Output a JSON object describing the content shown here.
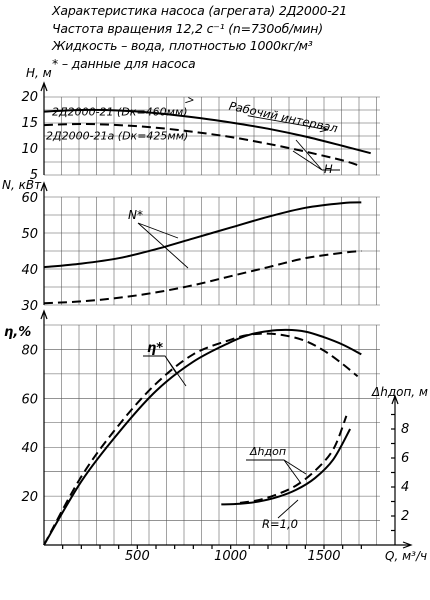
{
  "header": {
    "line1": "Характеристика насоса (агрегата) 2Д2000-21",
    "line2": "Частота вращения 12,2 с⁻¹ (n=730об/мин)",
    "line3": "Жидкость – вода, плотностью 1000кг/м³",
    "line4": "* – данные для насоса"
  },
  "chart_data": [
    {
      "type": "line",
      "panel": "H",
      "ylabel": "H, м",
      "ylim": [
        5,
        20
      ],
      "yticks": [
        "20",
        "15",
        "10",
        "5"
      ],
      "xlim": [
        0,
        1800
      ],
      "series": [
        {
          "name": "2Д2000-21 (Dк=460мм)",
          "style": "solid",
          "x": [
            0,
            200,
            400,
            600,
            800,
            1000,
            1200,
            1400,
            1600,
            1750
          ],
          "y": [
            17.2,
            17.5,
            17.4,
            16.9,
            16.1,
            15.1,
            13.9,
            12.4,
            10.6,
            9.2
          ]
        },
        {
          "name": "2Д2000-21а (Dк=425мм)",
          "style": "dashed",
          "x": [
            0,
            200,
            400,
            600,
            800,
            1000,
            1200,
            1400,
            1600,
            1680
          ],
          "y": [
            14.6,
            14.8,
            14.6,
            14.1,
            13.3,
            12.3,
            11.0,
            9.5,
            7.8,
            6.9
          ]
        }
      ],
      "annotations": [
        "Рабочий интервал",
        "H"
      ]
    },
    {
      "type": "line",
      "panel": "N",
      "ylabel": "N, кВт",
      "ylim": [
        30,
        60
      ],
      "yticks": [
        "60",
        "50",
        "40",
        "30"
      ],
      "xlim": [
        0,
        1800
      ],
      "series": [
        {
          "name": "2Д2000-21",
          "style": "solid",
          "x": [
            0,
            200,
            400,
            600,
            800,
            1000,
            1200,
            1400,
            1600,
            1700
          ],
          "y": [
            40.5,
            41.5,
            43.0,
            45.5,
            48.5,
            51.5,
            54.5,
            57.0,
            58.3,
            58.5
          ]
        },
        {
          "name": "2Д2000-21а",
          "style": "dashed",
          "x": [
            0,
            200,
            400,
            600,
            800,
            1000,
            1200,
            1400,
            1600,
            1700
          ],
          "y": [
            30.5,
            31.0,
            32.0,
            33.5,
            35.5,
            38.0,
            40.5,
            43.0,
            44.5,
            45.0
          ]
        }
      ],
      "annotations": [
        "N*"
      ]
    },
    {
      "type": "line",
      "panel": "eta",
      "ylabel": "η,%",
      "ylim": [
        0,
        90
      ],
      "yticks": [
        "80",
        "60",
        "40",
        "20"
      ],
      "xlim": [
        0,
        1800
      ],
      "xticks": [
        "500",
        "1000",
        "1500"
      ],
      "xlabel": "Q, м³/ч",
      "series": [
        {
          "name": "2Д2000-21",
          "style": "solid",
          "x": [
            0,
            200,
            400,
            600,
            800,
            1000,
            1100,
            1200,
            1300,
            1400,
            1500,
            1600,
            1700
          ],
          "y": [
            0,
            26,
            46,
            63,
            75,
            83,
            86,
            87.5,
            88,
            87.3,
            85,
            82,
            78
          ]
        },
        {
          "name": "2Д2000-21а",
          "style": "dashed",
          "x": [
            0,
            200,
            400,
            600,
            800,
            1000,
            1100,
            1200,
            1300,
            1400,
            1500,
            1600,
            1680
          ],
          "y": [
            0,
            28,
            49,
            66,
            78,
            84,
            86,
            86.5,
            85.6,
            83.5,
            79.5,
            74,
            69
          ]
        }
      ],
      "annotations": [
        "η*"
      ]
    },
    {
      "type": "line",
      "panel": "NPSH",
      "ylabel": "Δhдоп, м",
      "ylim": [
        0,
        10
      ],
      "yticks": [
        "8",
        "6",
        "4",
        "2"
      ],
      "series": [
        {
          "name": "2Д2000-21",
          "style": "solid",
          "x": [
            950,
            1050,
            1150,
            1250,
            1350,
            1450,
            1550,
            1640
          ],
          "y": [
            2.8,
            2.85,
            3.0,
            3.3,
            3.8,
            4.6,
            5.9,
            8.0
          ]
        },
        {
          "name": "2Д2000-21а",
          "style": "dashed",
          "x": [
            1050,
            1150,
            1250,
            1350,
            1450,
            1550,
            1620
          ],
          "y": [
            2.9,
            3.1,
            3.5,
            4.1,
            5.1,
            6.6,
            8.9
          ]
        }
      ],
      "annotations": [
        "Δhдоп",
        "R=1,0"
      ]
    }
  ]
}
